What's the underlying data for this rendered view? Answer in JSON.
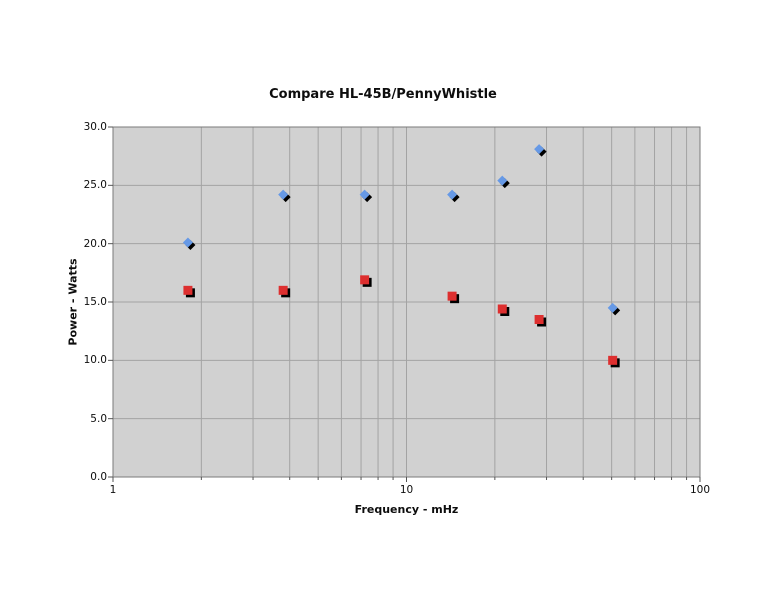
{
  "chart_data": {
    "type": "scatter",
    "title": "Compare HL-45B/PennyWhistle",
    "xlabel": "Frequency - mHz",
    "ylabel": "Power - Watts",
    "x_scale": "log",
    "xlim": [
      1,
      100
    ],
    "x_major_ticks": [
      1,
      10,
      100
    ],
    "x_tick_labels": [
      "1",
      "10",
      "100"
    ],
    "x_minor_ticks": [
      2,
      3,
      4,
      5,
      6,
      7,
      8,
      9,
      20,
      30,
      40,
      50,
      60,
      70,
      80,
      90
    ],
    "ylim": [
      0,
      30
    ],
    "y_tick_step": 5,
    "y_tick_labels": [
      "0.0",
      "5.0",
      "10.0",
      "15.0",
      "20.0",
      "25.0",
      "30.0"
    ],
    "grid": true,
    "legend": "none",
    "x": [
      1.8,
      3.8,
      7.2,
      14.3,
      21.2,
      28.3,
      50.4
    ],
    "series": [
      {
        "name": "blue-diamond",
        "marker": "diamond",
        "color": "#6699E6",
        "values": [
          20.1,
          24.2,
          24.2,
          24.2,
          25.4,
          28.1,
          14.5
        ]
      },
      {
        "name": "red-square",
        "marker": "square",
        "color": "#DD2F2F",
        "values": [
          16.0,
          16.0,
          16.9,
          15.5,
          14.4,
          13.5,
          10.0
        ]
      }
    ],
    "colors": {
      "plot_bg": "#D1D1D1",
      "gridline": "#A3A3A3",
      "border": "#7A7A7A",
      "tick": "#555555",
      "shadow": "#000000",
      "page_bg": "#FFFFFF"
    }
  }
}
